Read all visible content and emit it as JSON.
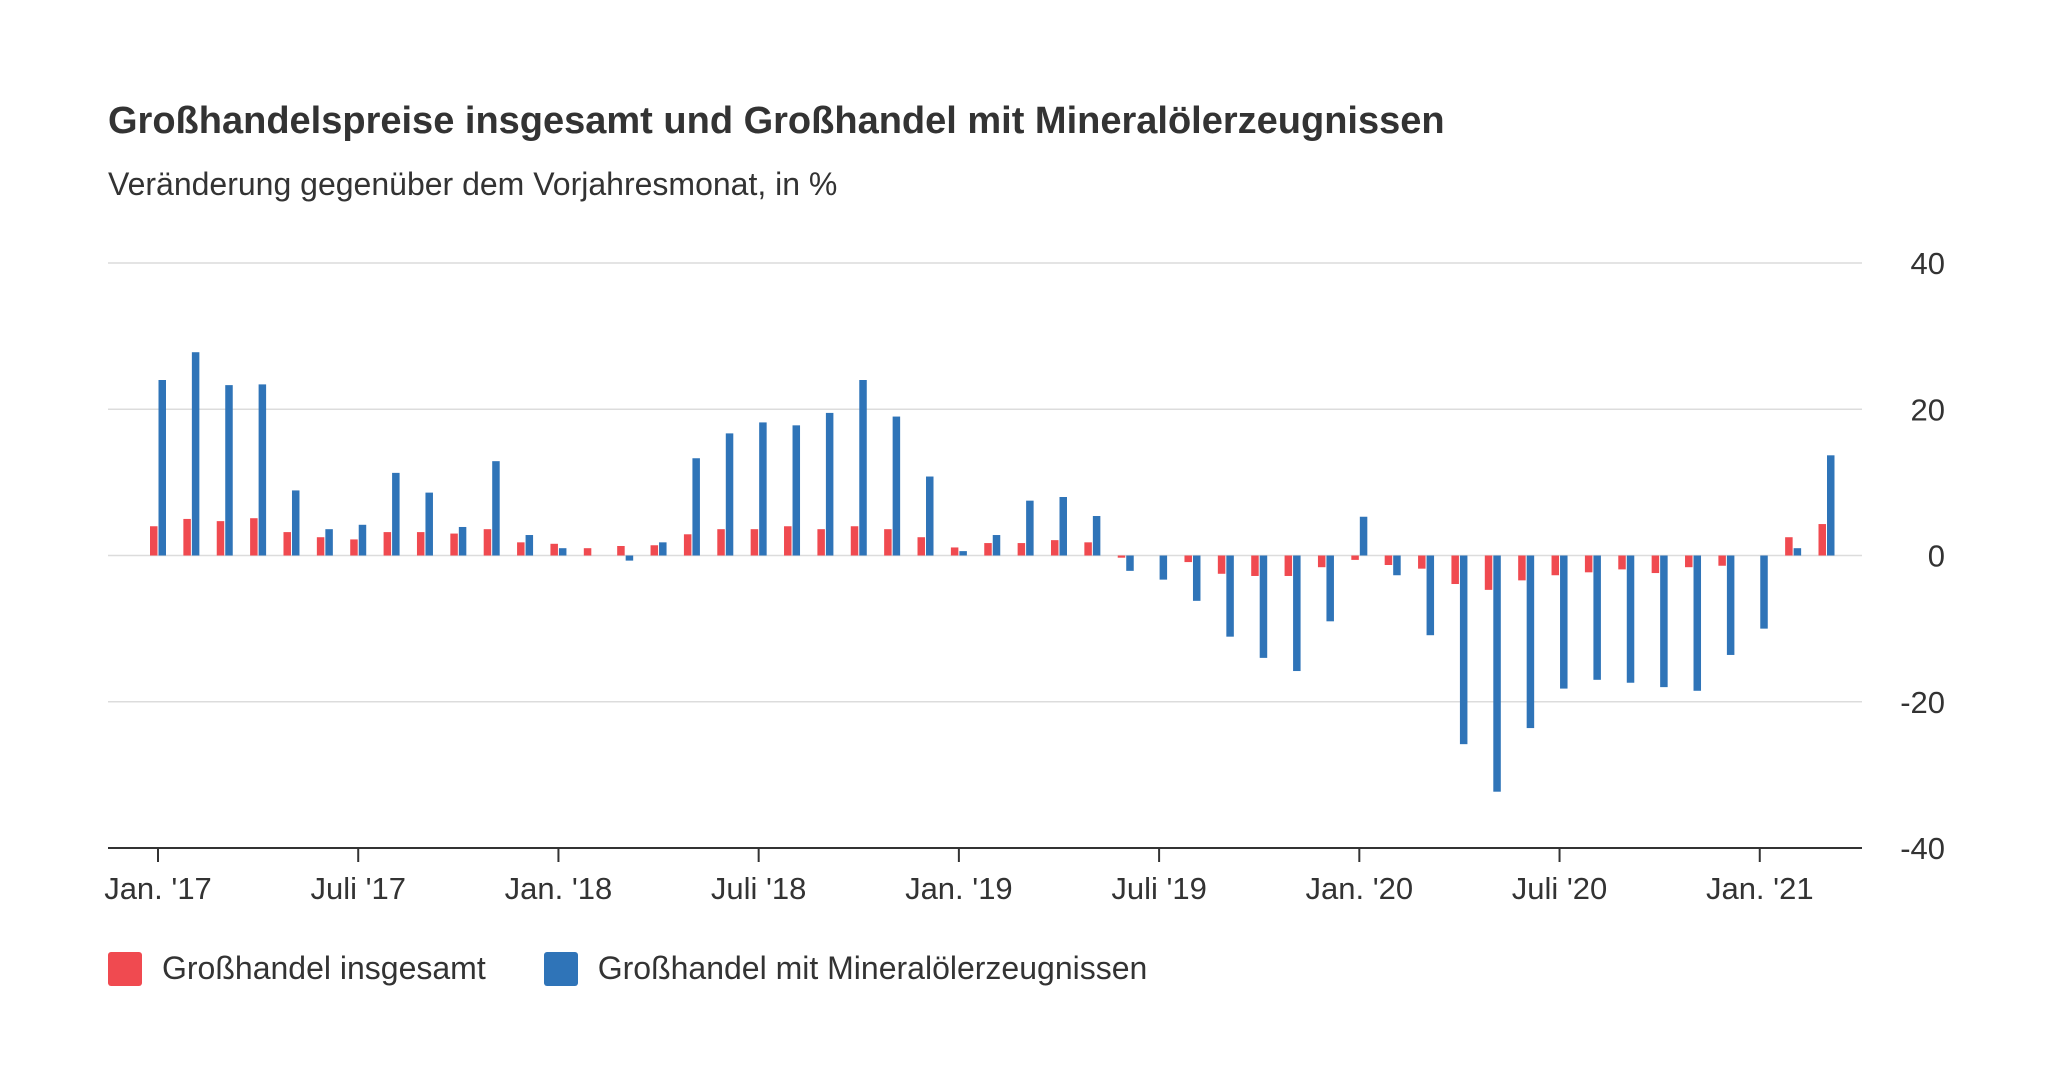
{
  "chart_data": {
    "type": "bar",
    "title": "Großhandelspreise insgesamt und Großhandel mit Mineralölerzeugnissen",
    "subtitle": "Veränderung gegenüber dem Vorjahresmonat, in %",
    "xlabel": "",
    "ylabel": "",
    "ylim": [
      -40,
      40
    ],
    "yticks": [
      40,
      20,
      0,
      -20,
      -40
    ],
    "y_tick_labels": [
      "40",
      "20",
      "0",
      "-20",
      "-40"
    ],
    "x_tick_labels": [
      {
        "label": "Jan. '17",
        "index": 0
      },
      {
        "label": "Juli '17",
        "index": 6
      },
      {
        "label": "Jan. '18",
        "index": 12
      },
      {
        "label": "Juli '18",
        "index": 18
      },
      {
        "label": "Jan. '19",
        "index": 24
      },
      {
        "label": "Juli '19",
        "index": 30
      },
      {
        "label": "Jan. '20",
        "index": 36
      },
      {
        "label": "Juli '20",
        "index": 42
      },
      {
        "label": "Jan. '21",
        "index": 48
      }
    ],
    "categories": [
      "2017-01",
      "2017-02",
      "2017-03",
      "2017-04",
      "2017-05",
      "2017-06",
      "2017-07",
      "2017-08",
      "2017-09",
      "2017-10",
      "2017-11",
      "2017-12",
      "2018-01",
      "2018-02",
      "2018-03",
      "2018-04",
      "2018-05",
      "2018-06",
      "2018-07",
      "2018-08",
      "2018-09",
      "2018-10",
      "2018-11",
      "2018-12",
      "2019-01",
      "2019-02",
      "2019-03",
      "2019-04",
      "2019-05",
      "2019-06",
      "2019-07",
      "2019-08",
      "2019-09",
      "2019-10",
      "2019-11",
      "2019-12",
      "2020-01",
      "2020-02",
      "2020-03",
      "2020-04",
      "2020-05",
      "2020-06",
      "2020-07",
      "2020-08",
      "2020-09",
      "2020-10",
      "2020-11",
      "2020-12",
      "2021-01",
      "2021-02",
      "2021-03"
    ],
    "series": [
      {
        "name": "Großhandel insgesamt",
        "color": "#f04a50",
        "values": [
          4.0,
          5.0,
          4.7,
          5.1,
          3.2,
          2.5,
          2.2,
          3.2,
          3.2,
          3.0,
          3.6,
          1.8,
          1.6,
          1.0,
          1.3,
          1.4,
          2.9,
          3.6,
          3.6,
          4.0,
          3.6,
          4.0,
          3.6,
          2.5,
          1.1,
          1.7,
          1.7,
          2.1,
          1.8,
          -0.3,
          0.0,
          -0.9,
          -2.5,
          -2.8,
          -2.8,
          -1.6,
          -0.6,
          -1.3,
          -1.8,
          -3.9,
          -4.7,
          -3.4,
          -2.7,
          -2.3,
          -1.9,
          -2.4,
          -1.6,
          -1.4,
          0.0,
          2.5,
          4.3
        ]
      },
      {
        "name": "Großhandel mit Mineralölerzeugnissen",
        "color": "#2f74b8",
        "values": [
          24.0,
          27.8,
          23.3,
          23.4,
          8.9,
          3.6,
          4.2,
          11.3,
          8.6,
          3.9,
          12.9,
          2.8,
          1.0,
          0.0,
          -0.7,
          1.8,
          13.3,
          16.7,
          18.2,
          17.8,
          19.5,
          24.0,
          19.0,
          10.8,
          0.6,
          2.8,
          7.5,
          8.0,
          5.4,
          -2.1,
          -3.3,
          -6.2,
          -11.1,
          -14.0,
          -15.8,
          -9.0,
          5.3,
          -2.7,
          -10.9,
          -25.8,
          -32.3,
          -23.6,
          -18.2,
          -17.0,
          -17.4,
          -18.0,
          -18.5,
          -13.6,
          -10.0,
          1.0,
          13.7
        ]
      }
    ],
    "grid": true,
    "legend": "bottom-left"
  }
}
